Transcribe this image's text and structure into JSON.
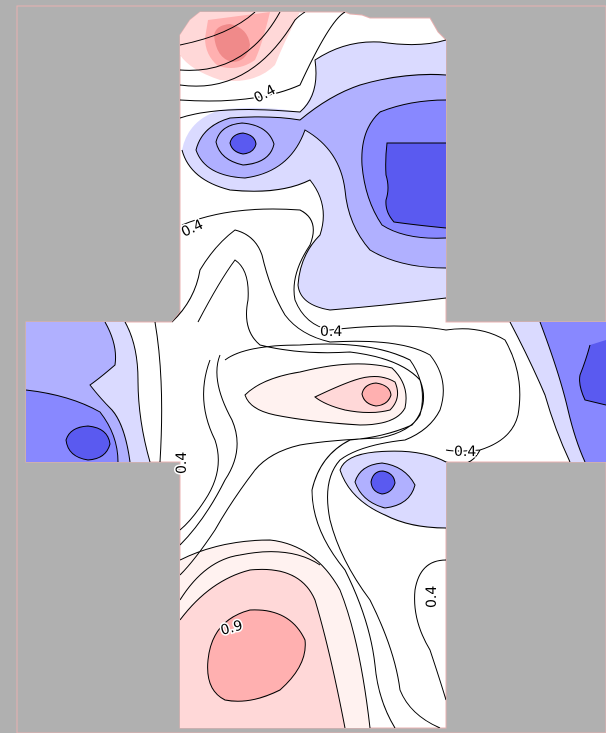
{
  "diagram": {
    "type": "contour-map",
    "colors": {
      "background": "#b0b0b0",
      "base_fill": "#ffffff",
      "border": "#e8b0b0",
      "blue_1": "#dadaff",
      "blue_2": "#b0b0ff",
      "blue_3": "#8888ff",
      "blue_4": "#5a5af0",
      "red_1": "#fff2f0",
      "red_2": "#ffd8d8",
      "red_3": "#ffb0b0",
      "red_4": "#f08a8a",
      "line": "#000000"
    },
    "contour_labels": [
      {
        "text": "0.4"
      },
      {
        "text": "0.4"
      },
      {
        "text": "0.4"
      },
      {
        "text": "0.4"
      },
      {
        "text": "0.4"
      },
      {
        "text": "0.4"
      },
      {
        "text": "0.9"
      }
    ]
  }
}
